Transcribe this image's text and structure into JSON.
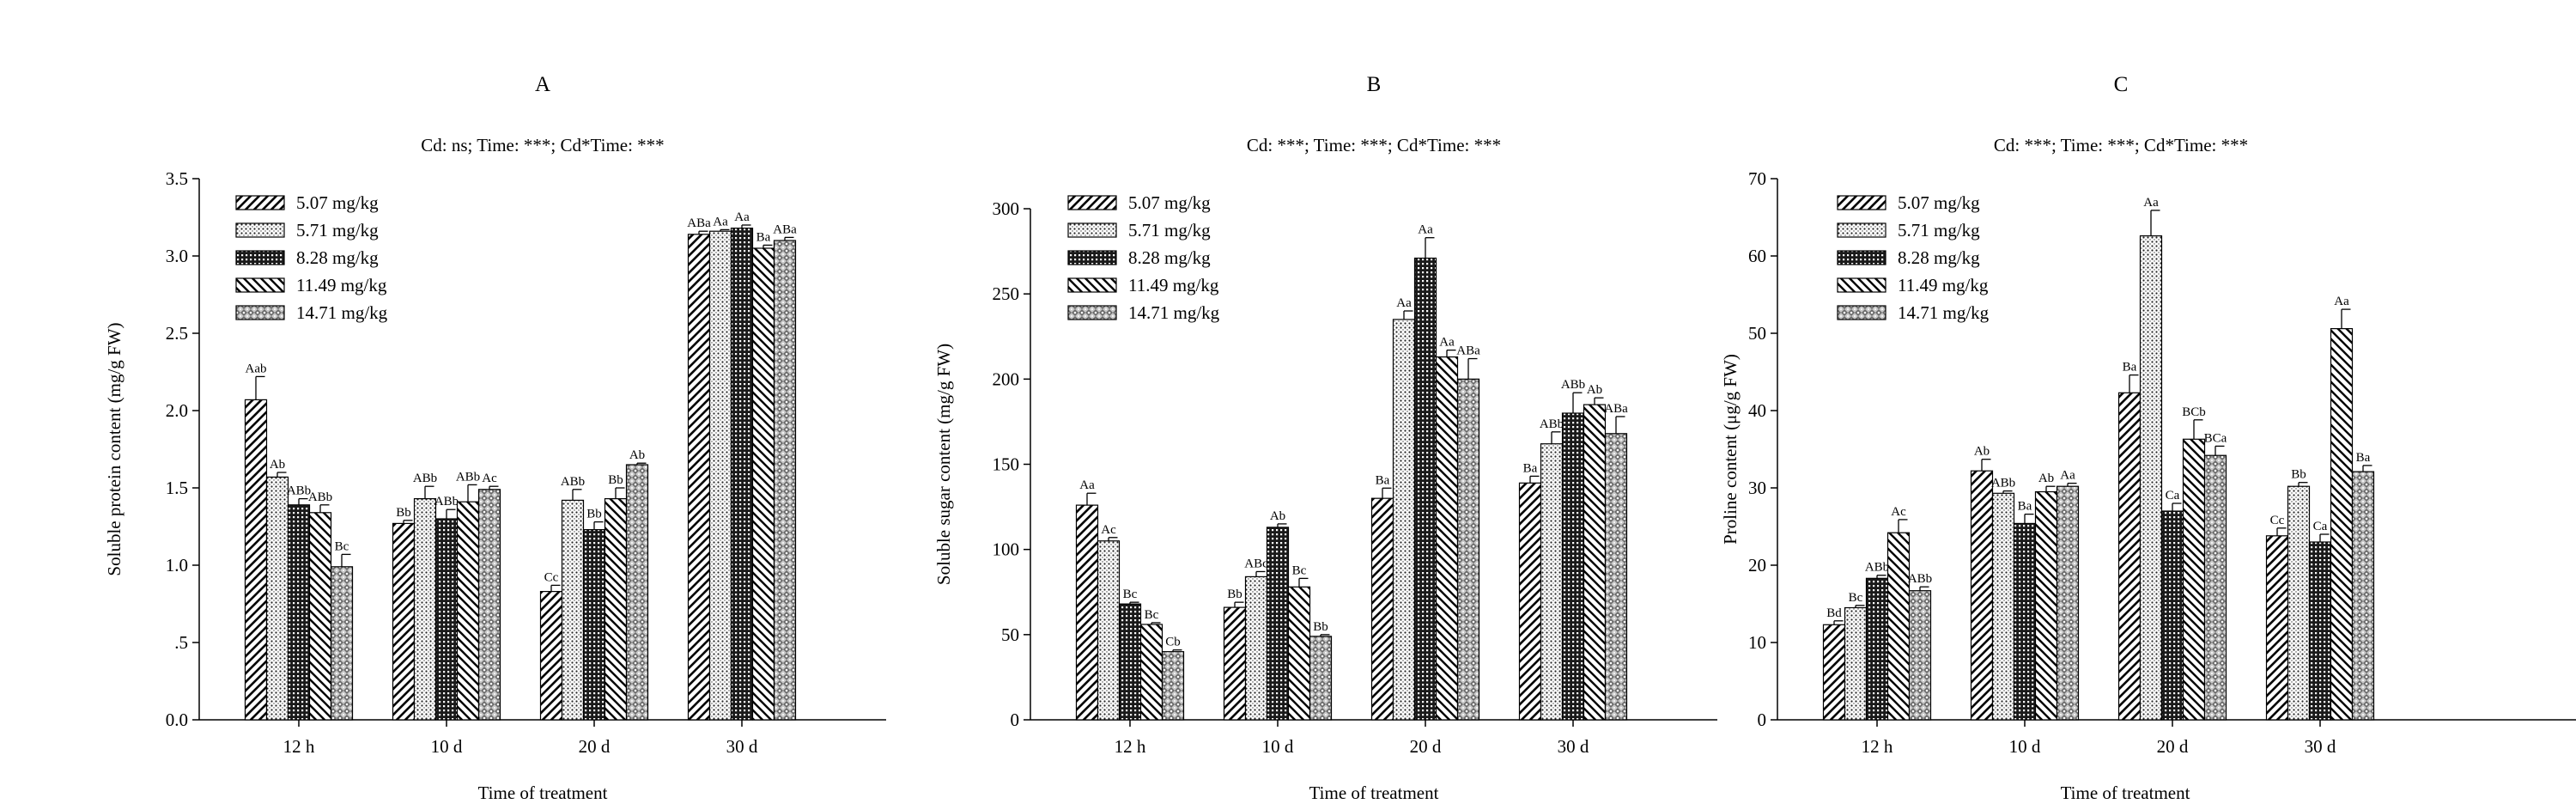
{
  "chart_data": [
    {
      "type": "bar",
      "panel": "A",
      "subtitle": "Cd: ns; Time: ***; Cd*Time: ***",
      "xlabel": "Time of treatment",
      "ylabel": "Soluble protein content (mg/g FW)",
      "ylim": [
        0,
        3.5
      ],
      "yticks": [
        0,
        0.5,
        1.0,
        1.5,
        2.0,
        2.5,
        3.0,
        3.5
      ],
      "ytick_labels": [
        "0.0",
        ".5",
        "1.0",
        "1.5",
        "2.0",
        "2.5",
        "3.0",
        "3.5"
      ],
      "categories": [
        "12 h",
        "10 d",
        "20 d",
        "30 d"
      ],
      "legend": "top-left",
      "series": [
        {
          "name": "5.07 mg/kg",
          "pattern": "diag-fwd",
          "values": [
            2.07,
            1.27,
            0.83,
            3.14
          ],
          "errors": [
            0.15,
            0.02,
            0.04,
            0.02
          ],
          "labels": [
            "Aab",
            "Bb",
            "Cc",
            "ABa"
          ]
        },
        {
          "name": "5.71 mg/kg",
          "pattern": "dots",
          "values": [
            1.57,
            1.43,
            1.42,
            3.16
          ],
          "errors": [
            0.03,
            0.08,
            0.07,
            0.01
          ],
          "labels": [
            "Ab",
            "ABb",
            "ABb",
            "Aa"
          ]
        },
        {
          "name": "8.28 mg/kg",
          "pattern": "dense-grid",
          "values": [
            1.39,
            1.3,
            1.23,
            3.18
          ],
          "errors": [
            0.04,
            0.06,
            0.05,
            0.02
          ],
          "labels": [
            "ABb",
            "ABb",
            "Bb",
            "Aa"
          ]
        },
        {
          "name": "11.49 mg/kg",
          "pattern": "diag-back",
          "values": [
            1.34,
            1.41,
            1.43,
            3.05
          ],
          "errors": [
            0.05,
            0.11,
            0.07,
            0.02
          ],
          "labels": [
            "ABb",
            "ABb",
            "Bb",
            "Ba"
          ]
        },
        {
          "name": "14.71 mg/kg",
          "pattern": "check",
          "values": [
            0.99,
            1.49,
            1.65,
            3.1
          ],
          "errors": [
            0.08,
            0.02,
            0.01,
            0.02
          ],
          "labels": [
            "Bc",
            "Ac",
            "Ab",
            "ABa"
          ]
        }
      ]
    },
    {
      "type": "bar",
      "panel": "B",
      "subtitle": "Cd: ***; Time: ***; Cd*Time: ***",
      "xlabel": "Time of treatment",
      "ylabel": "Soluble sugar content (mg/g FW)",
      "ylim": [
        0,
        300
      ],
      "yticks": [
        0,
        50,
        100,
        150,
        200,
        250,
        300
      ],
      "ytick_labels": [
        "0",
        "50",
        "100",
        "150",
        "200",
        "250",
        "300"
      ],
      "categories": [
        "12 h",
        "10 d",
        "20 d",
        "30 d"
      ],
      "legend": "top-left",
      "series": [
        {
          "name": "5.07 mg/kg",
          "pattern": "diag-fwd",
          "values": [
            126,
            66,
            130,
            139
          ],
          "errors": [
            7,
            3,
            6,
            4
          ],
          "labels": [
            "Aa",
            "Bb",
            "Ba",
            "Ba"
          ]
        },
        {
          "name": "5.71 mg/kg",
          "pattern": "dots",
          "values": [
            105,
            84,
            235,
            162
          ],
          "errors": [
            2,
            3,
            5,
            7
          ],
          "labels": [
            "Ac",
            "ABc",
            "Aa",
            "ABb"
          ]
        },
        {
          "name": "8.28 mg/kg",
          "pattern": "dense-grid",
          "values": [
            68,
            113,
            271,
            180
          ],
          "errors": [
            1,
            2,
            12,
            12
          ],
          "labels": [
            "Bc",
            "Ab",
            "Aa",
            "ABb"
          ]
        },
        {
          "name": "11.49 mg/kg",
          "pattern": "diag-back",
          "values": [
            56,
            78,
            213,
            185
          ],
          "errors": [
            1,
            5,
            4,
            4
          ],
          "labels": [
            "Bc",
            "Bc",
            "Aa",
            "Ab"
          ]
        },
        {
          "name": "14.71 mg/kg",
          "pattern": "check",
          "values": [
            40,
            49,
            200,
            168
          ],
          "errors": [
            1,
            1,
            12,
            10
          ],
          "labels": [
            "Cb",
            "Bb",
            "ABa",
            "ABa"
          ]
        }
      ]
    },
    {
      "type": "bar",
      "panel": "C",
      "subtitle": "Cd: ***; Time: ***; Cd*Time: ***",
      "xlabel": "Time of treatment",
      "ylabel": "Proline content (μg/g FW)",
      "ylim": [
        0,
        70
      ],
      "yticks": [
        0,
        10,
        20,
        30,
        40,
        50,
        60,
        70
      ],
      "ytick_labels": [
        "0",
        "10",
        "20",
        "30",
        "40",
        "50",
        "60",
        "70"
      ],
      "categories": [
        "12 h",
        "10 d",
        "20 d",
        "30 d"
      ],
      "legend": "top-left",
      "series": [
        {
          "name": "5.07 mg/kg",
          "pattern": "diag-fwd",
          "values": [
            12.3,
            32.2,
            42.3,
            23.8
          ],
          "errors": [
            0.5,
            1.5,
            2.3,
            1.0
          ],
          "labels": [
            "Bd",
            "Ab",
            "Ba",
            "Cc"
          ]
        },
        {
          "name": "5.71 mg/kg",
          "pattern": "dots",
          "values": [
            14.5,
            29.3,
            62.6,
            30.2
          ],
          "errors": [
            0.3,
            0.3,
            3.3,
            0.5
          ],
          "labels": [
            "Bc",
            "ABb",
            "Aa",
            "Bb"
          ]
        },
        {
          "name": "8.28 mg/kg",
          "pattern": "dense-grid",
          "values": [
            18.3,
            25.4,
            27.0,
            23.0
          ],
          "errors": [
            0.4,
            1.2,
            1.0,
            1.0
          ],
          "labels": [
            "ABb",
            "Ba",
            "Ca",
            "Ca"
          ]
        },
        {
          "name": "11.49 mg/kg",
          "pattern": "diag-back",
          "values": [
            24.2,
            29.5,
            36.3,
            50.6
          ],
          "errors": [
            1.7,
            0.7,
            2.5,
            2.5
          ],
          "labels": [
            "Ac",
            "Ab",
            "BCb",
            "Aa"
          ]
        },
        {
          "name": "14.71 mg/kg",
          "pattern": "check",
          "values": [
            16.7,
            30.2,
            34.2,
            32.1
          ],
          "errors": [
            0.5,
            0.4,
            1.2,
            0.8
          ],
          "labels": [
            "ABb",
            "Aa",
            "BCa",
            "Ba"
          ]
        }
      ]
    }
  ]
}
